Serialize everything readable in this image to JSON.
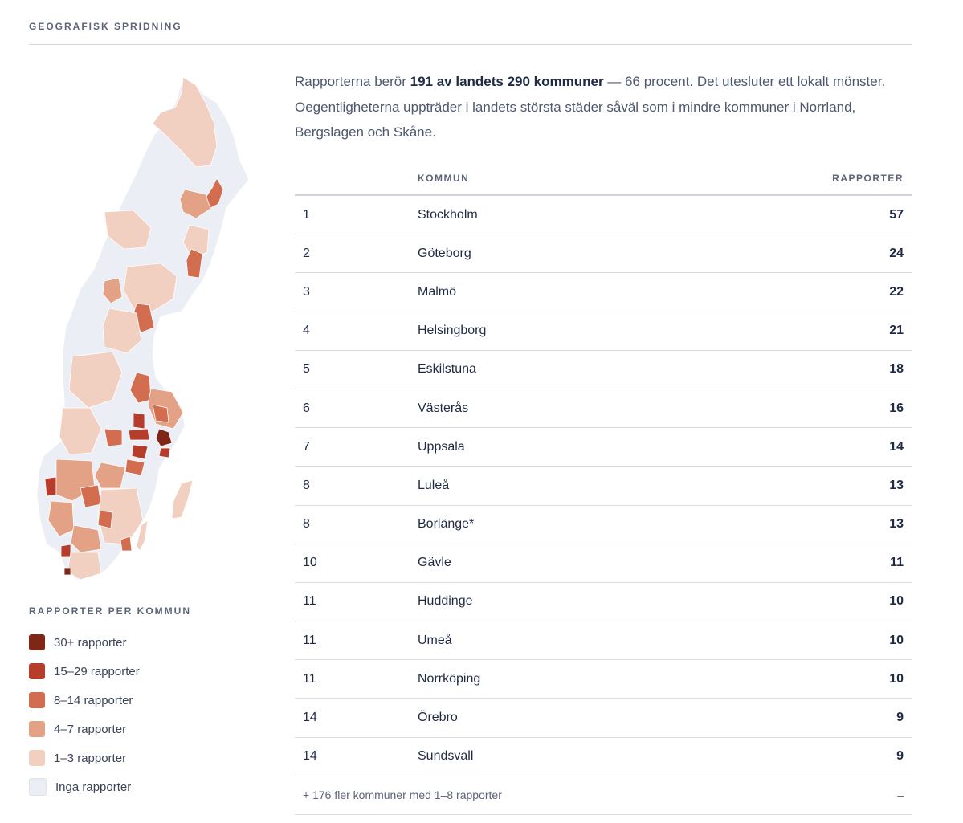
{
  "section_title": "GEOGRAFISK SPRIDNING",
  "intro": {
    "part1": "Rapporterna berör ",
    "bold": "191 av landets 290 kommuner",
    "part2": " — 66 procent. Det utesluter ett lokalt mönster. Oegentligheterna uppträder i landets största städer såväl som i mindre kommuner i Norrland, Bergslagen och Skåne."
  },
  "table": {
    "headers": {
      "rank": "",
      "name": "KOMMUN",
      "count": "RAPPORTER"
    },
    "rows": [
      {
        "rank": "1",
        "name": "Stockholm",
        "count": "57"
      },
      {
        "rank": "2",
        "name": "Göteborg",
        "count": "24"
      },
      {
        "rank": "3",
        "name": "Malmö",
        "count": "22"
      },
      {
        "rank": "4",
        "name": "Helsingborg",
        "count": "21"
      },
      {
        "rank": "5",
        "name": "Eskilstuna",
        "count": "18"
      },
      {
        "rank": "6",
        "name": "Västerås",
        "count": "16"
      },
      {
        "rank": "7",
        "name": "Uppsala",
        "count": "14"
      },
      {
        "rank": "8",
        "name": "Luleå",
        "count": "13"
      },
      {
        "rank": "8",
        "name": "Borlänge*",
        "count": "13"
      },
      {
        "rank": "10",
        "name": "Gävle",
        "count": "11"
      },
      {
        "rank": "11",
        "name": "Huddinge",
        "count": "10"
      },
      {
        "rank": "11",
        "name": "Umeå",
        "count": "10"
      },
      {
        "rank": "11",
        "name": "Norrköping",
        "count": "10"
      },
      {
        "rank": "14",
        "name": "Örebro",
        "count": "9"
      },
      {
        "rank": "14",
        "name": "Sundsvall",
        "count": "9"
      }
    ],
    "footer": {
      "text": "+ 176 fler kommuner med 1–8 rapporter",
      "count": "–"
    }
  },
  "legend": {
    "title": "RAPPORTER PER KOMMUN",
    "items": [
      {
        "label": "30+ rapporter",
        "color": "#7f2717"
      },
      {
        "label": "15–29 rapporter",
        "color": "#b63c2b"
      },
      {
        "label": "8–14 rapporter",
        "color": "#d36d4f"
      },
      {
        "label": "4–7 rapporter",
        "color": "#e3a185"
      },
      {
        "label": "1–3 rapporter",
        "color": "#f1d0c1"
      },
      {
        "label": "Inga rapporter",
        "color": "#eceef5"
      }
    ]
  }
}
